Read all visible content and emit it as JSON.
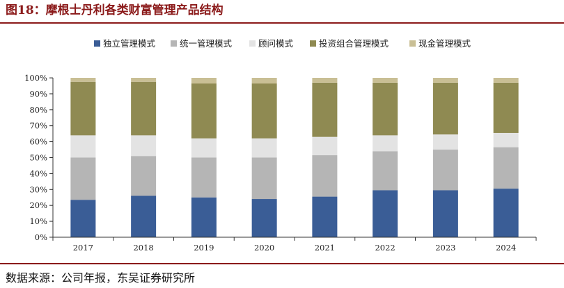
{
  "figure": {
    "label": "图18：",
    "title": "摩根士丹利各类财富管理产品结构",
    "source": "数据来源：公司年报，东吴证券研究所"
  },
  "chart_data": {
    "type": "bar",
    "stacked": true,
    "categories": [
      "2017",
      "2018",
      "2019",
      "2020",
      "2021",
      "2022",
      "2023",
      "2024"
    ],
    "series": [
      {
        "name": "独立管理模式",
        "color": "#3a5d96",
        "values": [
          23.5,
          26,
          25,
          24,
          25.5,
          29.5,
          29.5,
          30.5
        ]
      },
      {
        "name": "统一管理模式",
        "color": "#b5b5b5",
        "values": [
          26.5,
          25,
          25,
          26,
          26,
          24.5,
          25.5,
          26
        ]
      },
      {
        "name": "顾问模式",
        "color": "#e3e3e3",
        "values": [
          14,
          13,
          12,
          12,
          11.5,
          10,
          9.5,
          9
        ]
      },
      {
        "name": "投资组合管理模式",
        "color": "#8f8a52",
        "values": [
          33.5,
          33.5,
          34.5,
          34.5,
          34,
          33,
          32.5,
          31.5
        ]
      },
      {
        "name": "现金管理模式",
        "color": "#c9bf95",
        "values": [
          2.5,
          2.5,
          3.5,
          3.5,
          3,
          3,
          3,
          3
        ]
      }
    ],
    "ylim": [
      0,
      100
    ],
    "yticks": [
      "0%",
      "10%",
      "20%",
      "30%",
      "40%",
      "50%",
      "60%",
      "70%",
      "80%",
      "90%",
      "100%"
    ],
    "legend_position": "top",
    "grid": false
  }
}
